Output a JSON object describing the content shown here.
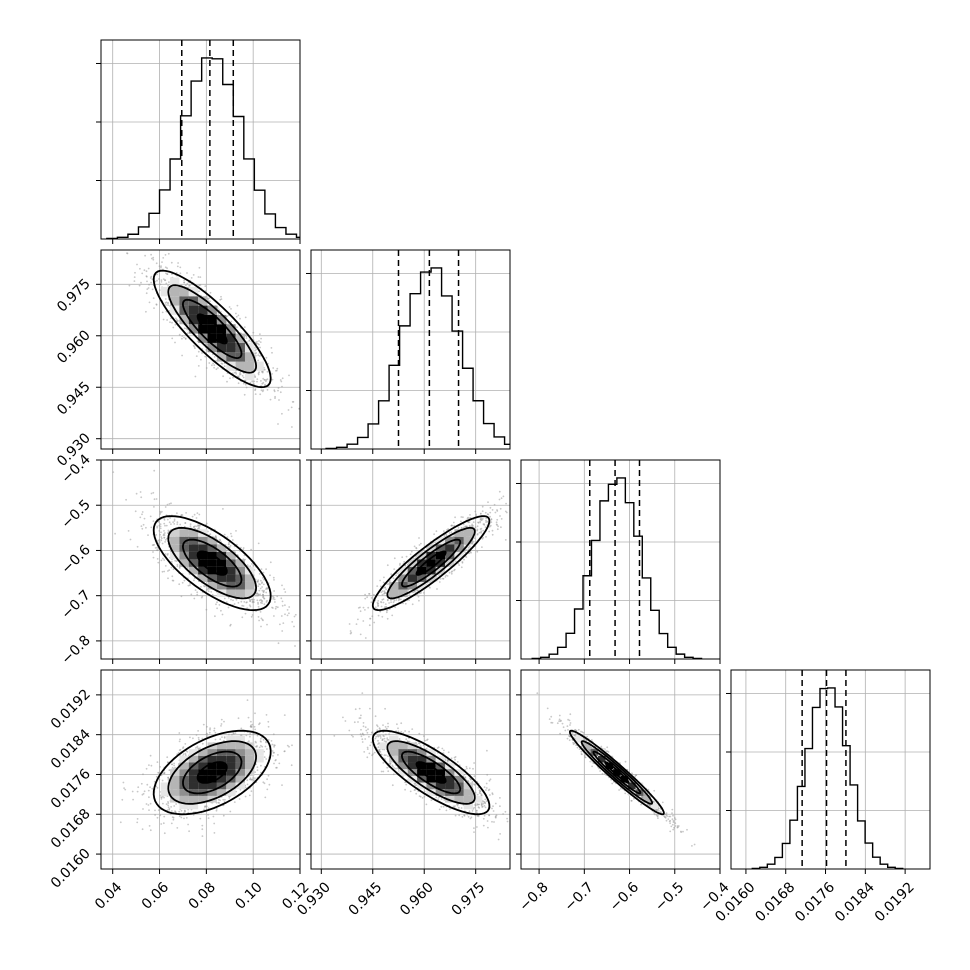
{
  "chart_data": {
    "type": "corner",
    "parameters": [
      {
        "index": 0,
        "range": [
          0.035,
          0.12
        ],
        "ticks": [
          0.04,
          0.06,
          0.08,
          0.1,
          0.12
        ],
        "tick_labels": [
          "0.04",
          "0.06",
          "0.08",
          "0.10",
          "0.12"
        ],
        "median": 0.0815,
        "mean": 0.0825,
        "sigma": 0.0125,
        "quantiles": [
          0.0695,
          0.0815,
          0.0915
        ]
      },
      {
        "index": 1,
        "range": [
          0.927,
          0.985
        ],
        "ticks": [
          0.93,
          0.945,
          0.96,
          0.975
        ],
        "tick_labels": [
          "0.930",
          "0.945",
          "0.960",
          "0.975"
        ],
        "median": 0.9615,
        "mean": 0.962,
        "sigma": 0.0085,
        "quantiles": [
          0.9525,
          0.9615,
          0.97
        ]
      },
      {
        "index": 2,
        "range": [
          -0.84,
          -0.4
        ],
        "ticks": [
          -0.8,
          -0.7,
          -0.6,
          -0.5,
          -0.4
        ],
        "tick_labels": [
          "−0.8",
          "−0.7",
          "−0.6",
          "−0.5",
          "−0.4"
        ],
        "median": -0.632,
        "mean": -0.628,
        "sigma": 0.052,
        "quantiles": [
          -0.688,
          -0.632,
          -0.578
        ]
      },
      {
        "index": 3,
        "range": [
          0.0157,
          0.0197
        ],
        "ticks": [
          0.016,
          0.0168,
          0.0176,
          0.0184,
          0.0192
        ],
        "tick_labels": [
          "0.0160",
          "0.0168",
          "0.0176",
          "0.0184",
          "0.0192"
        ],
        "median": 0.01762,
        "mean": 0.01764,
        "sigma": 0.00042,
        "quantiles": [
          0.01713,
          0.01762,
          0.01801
        ]
      }
    ],
    "correlations": {
      "1_0": -0.85,
      "2_0": -0.7,
      "2_1": 0.9,
      "3_0": 0.5,
      "3_1": -0.8,
      "3_2": -0.97
    },
    "contour_levels_sigma": [
      0.5,
      1.0,
      1.5,
      2.0
    ],
    "grid": true,
    "title": "",
    "xlabel": "",
    "ylabel": ""
  },
  "colors": {
    "line": "#000000",
    "grid": "#b0b0b0",
    "points": "#9a9a9a",
    "density_light": "#d9d9d9",
    "density_dark": "#000000"
  }
}
